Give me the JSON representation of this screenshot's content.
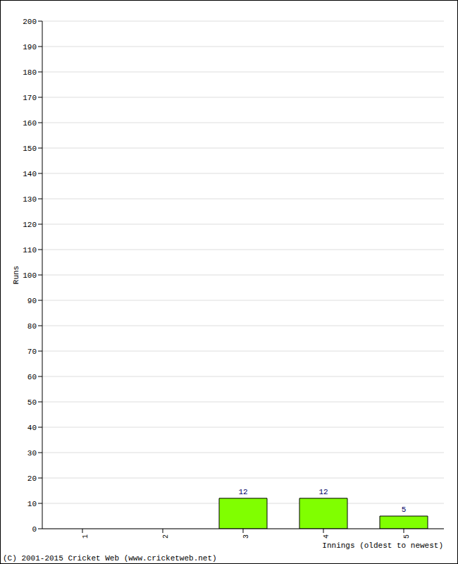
{
  "chart_data": {
    "type": "bar",
    "categories": [
      "1",
      "2",
      "3",
      "4",
      "5"
    ],
    "values": [
      0,
      0,
      12,
      12,
      5
    ],
    "color": "#80ff00",
    "ylim": [
      0,
      200
    ],
    "yticks": [
      0,
      10,
      20,
      30,
      40,
      50,
      60,
      70,
      80,
      90,
      100,
      110,
      120,
      130,
      140,
      150,
      160,
      170,
      180,
      190,
      200
    ],
    "grid": true,
    "data_labels": true,
    "y_label": "Runs",
    "x_label": "Innings (oldest to newest)",
    "annotations": [
      "(C) 2001-2015 Cricket Web (www.cricketweb.net)"
    ]
  }
}
